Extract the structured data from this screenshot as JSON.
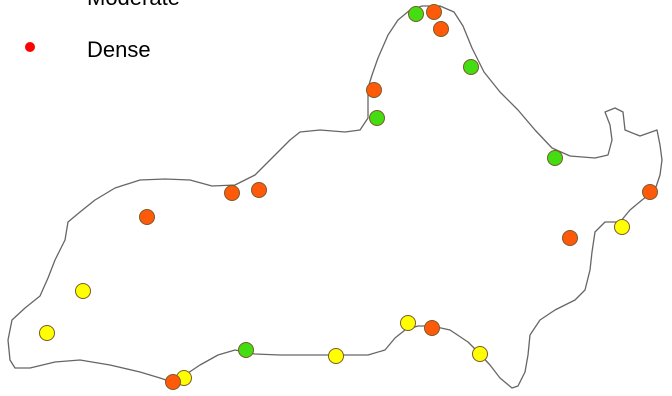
{
  "legend": {
    "items": [
      {
        "label": "Moderate",
        "color": "#ff5500"
      },
      {
        "label": "Dense",
        "color": "#ff0000"
      }
    ]
  },
  "colors": {
    "outline": "#666666",
    "orange": "#ff5a0a",
    "green": "#44dd11",
    "yellow": "#ffff00",
    "marker_stroke": "#7a5a2a"
  }
}
